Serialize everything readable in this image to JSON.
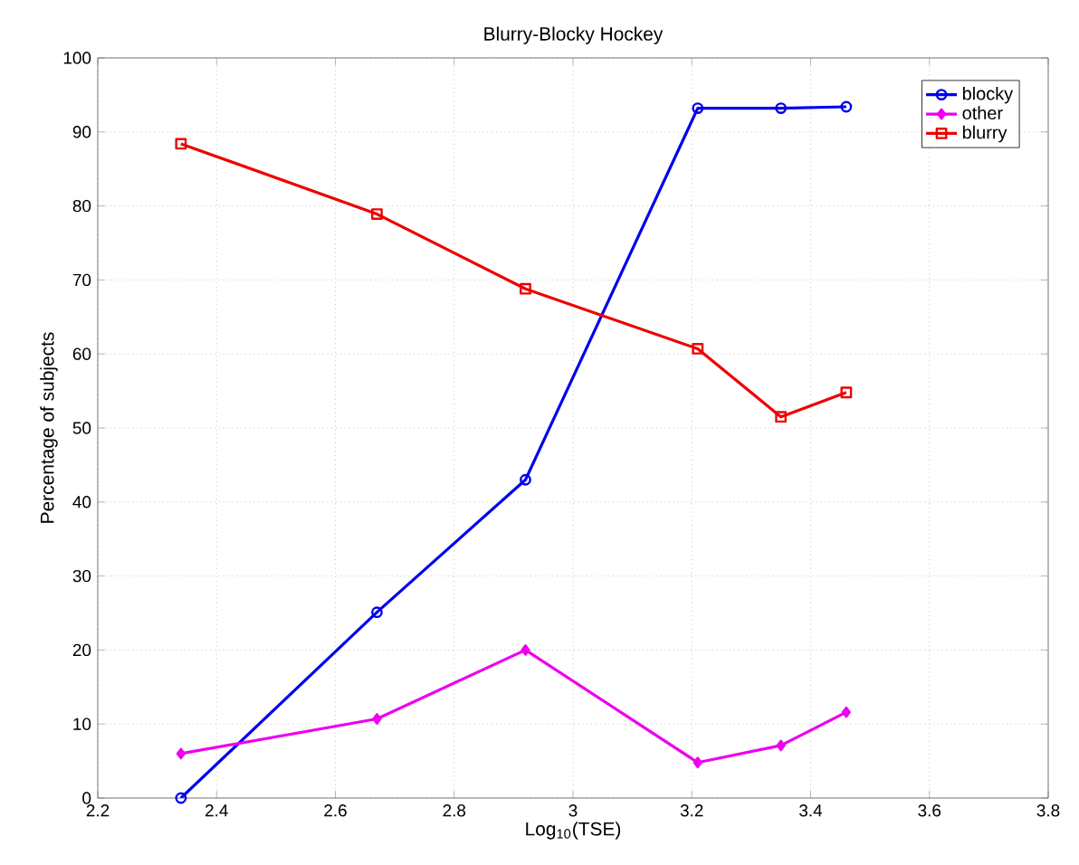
{
  "chart_data": {
    "type": "line",
    "title": "Blurry-Blocky  Hockey",
    "xlabel": "Log$_{10}$(TSE)",
    "ylabel": "Percentage of subjects",
    "x": [
      2.34,
      2.67,
      2.92,
      3.21,
      3.35,
      3.46
    ],
    "series": [
      {
        "name": "blocky",
        "color": "#0000ee",
        "marker": "circle",
        "values": [
          0,
          25.1,
          43.0,
          93.2,
          93.2,
          93.4
        ]
      },
      {
        "name": "other",
        "color": "#ee00ee",
        "marker": "diamond",
        "values": [
          6.0,
          10.7,
          20.0,
          4.8,
          7.1,
          11.6
        ]
      },
      {
        "name": "blurry",
        "color": "#ee0000",
        "marker": "square",
        "values": [
          88.4,
          78.9,
          68.8,
          60.7,
          51.5,
          54.8
        ]
      }
    ],
    "xlim": [
      2.2,
      3.8
    ],
    "xticks": [
      2.2,
      2.4,
      2.6,
      2.8,
      3,
      3.2,
      3.4,
      3.6,
      3.8
    ],
    "ylim": [
      0,
      100
    ],
    "yticks": [
      0,
      10,
      20,
      30,
      40,
      50,
      60,
      70,
      80,
      90,
      100
    ],
    "grid": true,
    "legend": "top right",
    "line_style": "solid"
  }
}
